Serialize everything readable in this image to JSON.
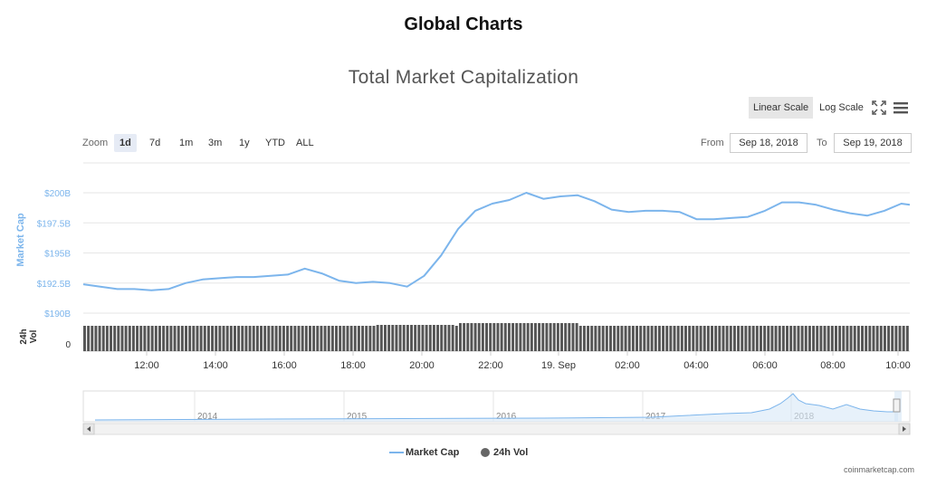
{
  "page_title": "Global Charts",
  "toolbar": {
    "linear_scale": "Linear Scale",
    "log_scale": "Log Scale",
    "fullscreen_icon": "fullscreen-icon",
    "menu_icon": "hamburger-menu-icon"
  },
  "zoom": {
    "label": "Zoom",
    "options": [
      "1d",
      "7d",
      "1m",
      "3m",
      "1y",
      "YTD",
      "ALL"
    ],
    "selected": "1d"
  },
  "range": {
    "from_label": "From",
    "from_value": "Sep 18, 2018",
    "to_label": "To",
    "to_value": "Sep 19, 2018"
  },
  "chart_data": {
    "type": "line",
    "title": "Total Market Capitalization",
    "ylabel": "Market Cap",
    "ylim": [
      190,
      200
    ],
    "y_ticks": [
      "$200B",
      "$197.5B",
      "$195B",
      "$192.5B",
      "$190B"
    ],
    "x_ticks": [
      "12:00",
      "14:00",
      "16:00",
      "18:00",
      "20:00",
      "22:00",
      "19. Sep",
      "02:00",
      "04:00",
      "06:00",
      "08:00",
      "10:00"
    ],
    "series": [
      {
        "name": "Market Cap",
        "color": "#7cb5ec",
        "x": [
          "10:00",
          "10:30",
          "11:00",
          "11:30",
          "12:00",
          "12:30",
          "13:00",
          "13:30",
          "14:00",
          "14:30",
          "15:00",
          "15:30",
          "16:00",
          "16:30",
          "17:00",
          "17:30",
          "18:00",
          "18:30",
          "19:00",
          "19:30",
          "20:00",
          "20:30",
          "21:00",
          "21:30",
          "22:00",
          "22:30",
          "23:00",
          "23:30",
          "00:00",
          "00:30",
          "01:00",
          "01:30",
          "02:00",
          "02:30",
          "03:00",
          "03:30",
          "04:00",
          "04:30",
          "05:00",
          "05:30",
          "06:00",
          "06:30",
          "07:00",
          "07:30",
          "08:00",
          "08:30",
          "09:00",
          "09:30",
          "10:00",
          "10:15"
        ],
        "values": [
          192.4,
          192.2,
          192.0,
          192.0,
          191.9,
          192.0,
          192.5,
          192.8,
          192.9,
          193.0,
          193.0,
          193.1,
          193.2,
          193.7,
          193.3,
          192.7,
          192.5,
          192.6,
          192.5,
          192.2,
          193.1,
          194.8,
          197.0,
          198.5,
          199.1,
          199.4,
          200.0,
          199.5,
          199.7,
          199.8,
          199.3,
          198.6,
          198.4,
          198.5,
          198.5,
          198.4,
          197.8,
          197.8,
          197.9,
          198.0,
          198.5,
          199.2,
          199.2,
          199.0,
          198.6,
          198.3,
          198.1,
          198.5,
          199.1,
          199.0
        ]
      },
      {
        "name": "24h Vol",
        "color": "#555555",
        "values_note": ""
      }
    ],
    "volume_axis": {
      "label": "24h Vol",
      "tick": "0",
      "bars": 220
    },
    "navigator": {
      "years": [
        "2014",
        "2015",
        "2016",
        "2017",
        "2018"
      ]
    },
    "legend": "bottom-center",
    "grid": true
  },
  "legend": {
    "market_cap": "Market Cap",
    "volume": "24h Vol"
  },
  "source": "coinmarketcap.com"
}
